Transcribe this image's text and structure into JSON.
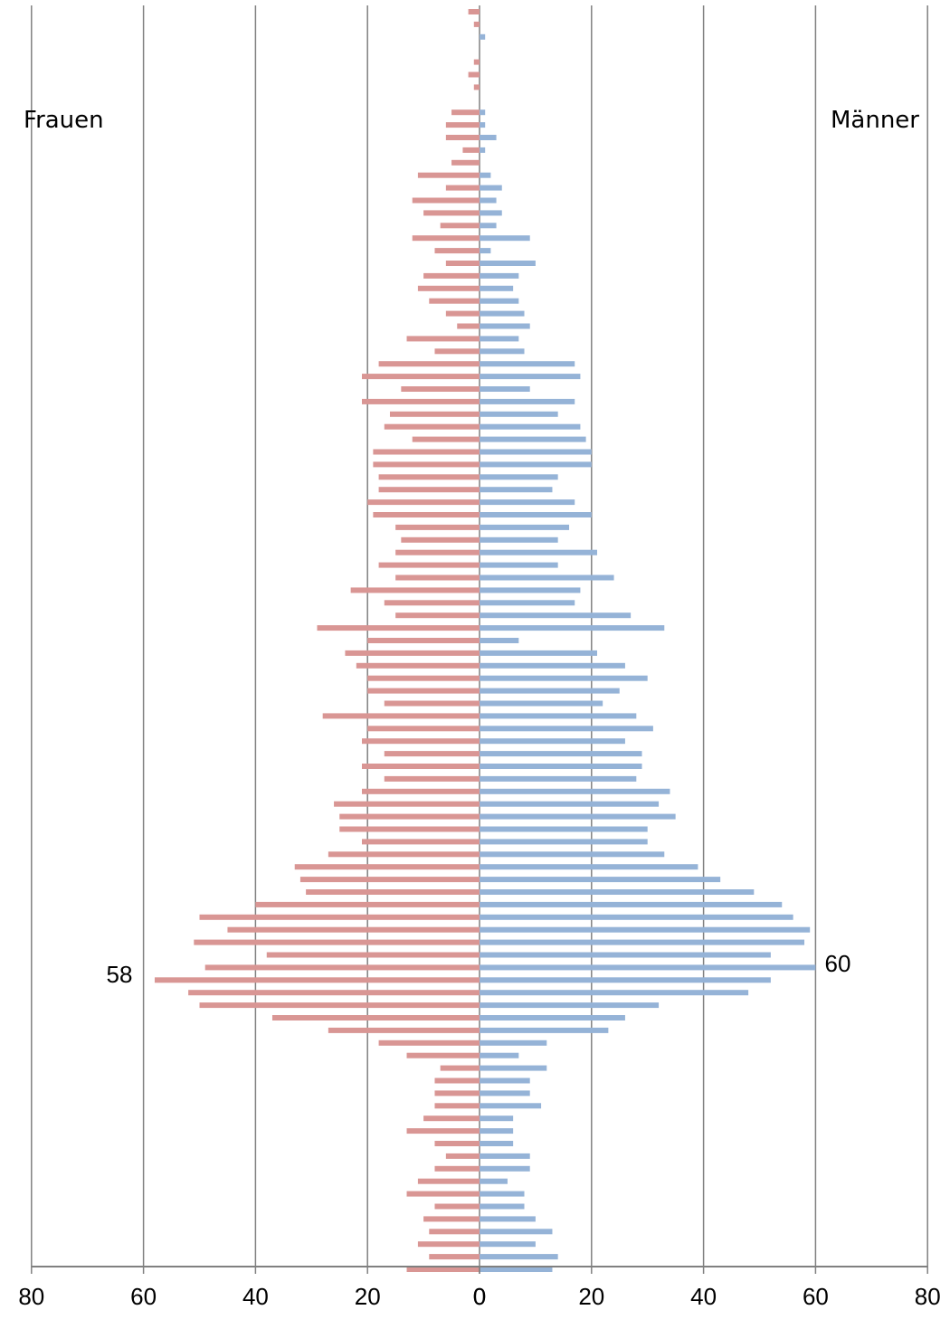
{
  "chart_data": {
    "type": "bar",
    "orientation": "horizontal",
    "layout": "population-pyramid",
    "series": [
      {
        "name": "Frauen",
        "color": "#d99694",
        "values": [
          2,
          1,
          0,
          0,
          1,
          2,
          1,
          0,
          5,
          6,
          6,
          3,
          5,
          11,
          6,
          12,
          10,
          7,
          12,
          8,
          6,
          10,
          11,
          9,
          6,
          4,
          13,
          8,
          18,
          21,
          14,
          21,
          16,
          17,
          12,
          19,
          19,
          18,
          18,
          20,
          19,
          15,
          14,
          15,
          18,
          15,
          23,
          17,
          15,
          29,
          20,
          24,
          22,
          20,
          20,
          17,
          28,
          20,
          21,
          17,
          21,
          17,
          21,
          26,
          25,
          25,
          21,
          27,
          33,
          32,
          31,
          40,
          50,
          45,
          51,
          38,
          49,
          58,
          52,
          50,
          37,
          27,
          18,
          13,
          7,
          8,
          8,
          8,
          10,
          13,
          8,
          6,
          8,
          11,
          13,
          8,
          10,
          9,
          11,
          9,
          13
        ],
        "peak_label": "58"
      },
      {
        "name": "Männer",
        "color": "#95b3d7",
        "values": [
          0,
          0,
          1,
          0,
          0,
          0,
          0,
          0,
          1,
          1,
          3,
          1,
          0,
          2,
          4,
          3,
          4,
          3,
          9,
          2,
          10,
          7,
          6,
          7,
          8,
          9,
          7,
          8,
          17,
          18,
          9,
          17,
          14,
          18,
          19,
          20,
          20,
          14,
          13,
          17,
          20,
          16,
          14,
          21,
          14,
          24,
          18,
          17,
          27,
          33,
          7,
          21,
          26,
          30,
          25,
          22,
          28,
          31,
          26,
          29,
          29,
          28,
          34,
          32,
          35,
          30,
          30,
          33,
          39,
          43,
          49,
          54,
          56,
          59,
          58,
          52,
          60,
          52,
          48,
          32,
          26,
          23,
          12,
          7,
          12,
          9,
          9,
          11,
          6,
          6,
          6,
          9,
          9,
          5,
          8,
          8,
          10,
          13,
          10,
          14,
          13
        ],
        "peak_label": "60"
      }
    ],
    "xlim": [
      -80,
      80
    ],
    "x_ticks": [
      "80",
      "60",
      "40",
      "20",
      "0",
      "0",
      "20",
      "40",
      "60",
      "80"
    ],
    "grid": true,
    "axis_color": "#808080"
  }
}
